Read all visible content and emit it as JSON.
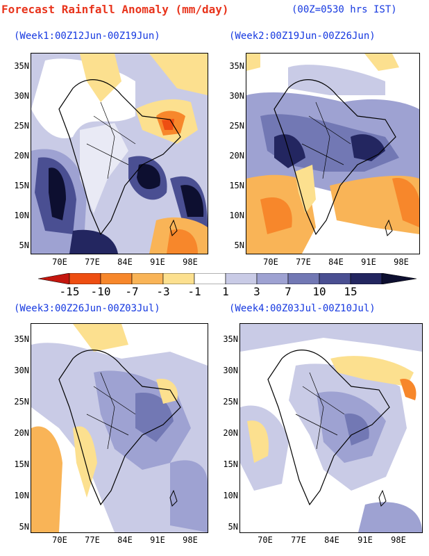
{
  "header": {
    "title": "Forecast Rainfall Anomaly (mm/day)",
    "subtitle": "(00Z=0530 hrs IST)"
  },
  "panels": [
    {
      "label": "(Week1:00Z12Jun-00Z19Jun)"
    },
    {
      "label": "(Week2:00Z19Jun-00Z26Jun)"
    },
    {
      "label": "(Week3:00Z26Jun-00Z03Jul)"
    },
    {
      "label": "(Week4:00Z03Jul-00Z10Jul)"
    }
  ],
  "axes": {
    "lat_labels": [
      "35N",
      "30N",
      "25N",
      "20N",
      "15N",
      "10N",
      "5N"
    ],
    "lon_labels": [
      "70E",
      "77E",
      "84E",
      "91E",
      "98E"
    ]
  },
  "colorbar": {
    "labels": [
      "-15",
      "-10",
      "-7",
      "-3",
      "-1",
      "1",
      "3",
      "7",
      "10",
      "15"
    ],
    "colors": [
      "#c4160e",
      "#ee4e12",
      "#f7872b",
      "#f9b457",
      "#fce08f",
      "#ffffff",
      "#c9cbe6",
      "#9ea2d2",
      "#7278b4",
      "#4a4f92",
      "#232660",
      "#0d0f30"
    ]
  },
  "palette": {
    "title_color": "#e8341c",
    "label_color": "#1538e0",
    "pos_light": "#c9cbe6",
    "pos_mid": "#9ea2d2",
    "pos_strong": "#7278b4",
    "pos_heavy": "#4a4f92",
    "pos_extreme": "#232660",
    "neg_light": "#fce08f",
    "neg_mid": "#f9b457",
    "neg_strong": "#f7872b",
    "neg_heavy": "#ee4e12"
  }
}
